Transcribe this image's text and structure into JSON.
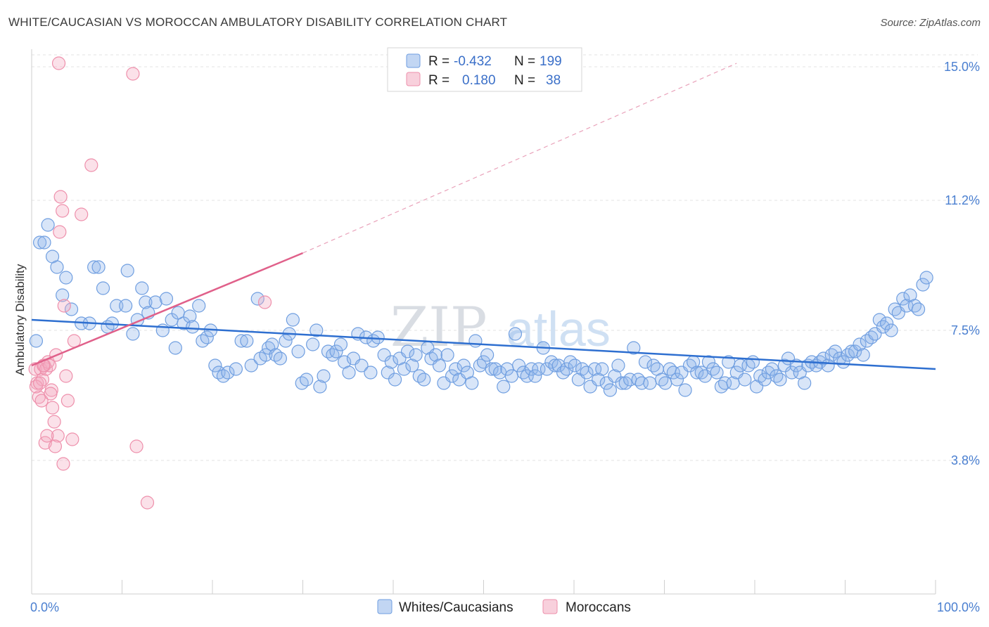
{
  "title": "WHITE/CAUCASIAN VS MOROCCAN AMBULATORY DISABILITY CORRELATION CHART",
  "source": "Source: ZipAtlas.com",
  "watermark": {
    "part1": "ZIP",
    "part2": "atlas"
  },
  "chart_data": {
    "type": "scatter",
    "title": "WHITE/CAUCASIAN VS MOROCCAN AMBULATORY DISABILITY CORRELATION CHART",
    "xlabel": "",
    "ylabel": "Ambulatory Disability",
    "xlim": [
      0,
      100
    ],
    "ylim": [
      0,
      15.5
    ],
    "x_tick_labels": [
      "0.0%",
      "100.0%"
    ],
    "y_ticks": [
      3.8,
      7.5,
      11.2,
      15.0
    ],
    "y_tick_labels": [
      "3.8%",
      "7.5%",
      "11.2%",
      "15.0%"
    ],
    "grid": true,
    "legend": {
      "placement": "top-center",
      "entries": [
        {
          "name": "Whites/Caucasians",
          "r_label": "R =",
          "r_value": "-0.432",
          "n_label": "N =",
          "n_value": "199",
          "color": "#8fb4ea",
          "stroke": "#6f9ee0"
        },
        {
          "name": "Moroccans",
          "r_label": "R =",
          "r_value": "0.180",
          "n_label": "N =",
          "n_value": "38",
          "color": "#f3a9bf",
          "stroke": "#ee8fab"
        }
      ]
    },
    "trend_lines": [
      {
        "series": "Whites/Caucasians",
        "x": [
          0,
          100
        ],
        "y": [
          7.8,
          6.4
        ],
        "color": "#2e6fd0"
      },
      {
        "series": "Moroccans",
        "x": [
          0,
          30
        ],
        "y": [
          6.5,
          9.7
        ],
        "color": "#e0608a"
      },
      {
        "series": "Moroccans (extrapolated)",
        "x": [
          30,
          78
        ],
        "y": [
          9.7,
          15.1
        ],
        "color": "#e9a2ba",
        "dashed": true
      }
    ],
    "series": [
      {
        "name": "Whites/Caucasians",
        "points": [
          [
            0.5,
            7.2
          ],
          [
            0.9,
            10.0
          ],
          [
            1.4,
            10.0
          ],
          [
            1.8,
            10.5
          ],
          [
            2.3,
            9.6
          ],
          [
            2.8,
            9.3
          ],
          [
            3.4,
            8.5
          ],
          [
            3.8,
            9.0
          ],
          [
            4.4,
            8.1
          ],
          [
            5.5,
            7.7
          ],
          [
            6.4,
            7.7
          ],
          [
            6.9,
            9.3
          ],
          [
            7.4,
            9.3
          ],
          [
            7.9,
            8.7
          ],
          [
            8.4,
            7.6
          ],
          [
            8.9,
            7.7
          ],
          [
            9.4,
            8.2
          ],
          [
            10.4,
            8.2
          ],
          [
            10.6,
            9.2
          ],
          [
            11.2,
            7.4
          ],
          [
            11.7,
            7.8
          ],
          [
            12.2,
            8.7
          ],
          [
            12.6,
            8.3
          ],
          [
            12.9,
            8.0
          ],
          [
            13.7,
            8.3
          ],
          [
            14.5,
            7.5
          ],
          [
            14.9,
            8.4
          ],
          [
            15.5,
            7.8
          ],
          [
            15.9,
            7.0
          ],
          [
            16.2,
            8.0
          ],
          [
            16.8,
            7.7
          ],
          [
            17.5,
            7.9
          ],
          [
            17.8,
            7.6
          ],
          [
            18.5,
            8.2
          ],
          [
            18.9,
            7.2
          ],
          [
            19.4,
            7.3
          ],
          [
            19.8,
            7.5
          ],
          [
            20.3,
            6.5
          ],
          [
            20.7,
            6.3
          ],
          [
            21.2,
            6.2
          ],
          [
            21.7,
            6.3
          ],
          [
            22.6,
            6.4
          ],
          [
            23.2,
            7.2
          ],
          [
            23.8,
            7.2
          ],
          [
            24.3,
            6.5
          ],
          [
            25.0,
            8.4
          ],
          [
            25.3,
            6.7
          ],
          [
            25.9,
            6.8
          ],
          [
            26.2,
            7.0
          ],
          [
            26.6,
            7.1
          ],
          [
            27.0,
            6.8
          ],
          [
            27.5,
            6.7
          ],
          [
            28.1,
            7.2
          ],
          [
            28.5,
            7.4
          ],
          [
            28.9,
            7.8
          ],
          [
            29.5,
            6.9
          ],
          [
            29.9,
            6.0
          ],
          [
            30.4,
            6.1
          ],
          [
            31.1,
            7.1
          ],
          [
            31.5,
            7.5
          ],
          [
            31.9,
            5.9
          ],
          [
            32.3,
            6.2
          ],
          [
            32.8,
            6.9
          ],
          [
            33.3,
            6.8
          ],
          [
            33.7,
            6.9
          ],
          [
            34.2,
            7.1
          ],
          [
            34.6,
            6.6
          ],
          [
            35.1,
            6.3
          ],
          [
            35.6,
            6.7
          ],
          [
            36.1,
            7.4
          ],
          [
            36.5,
            6.5
          ],
          [
            37.0,
            7.3
          ],
          [
            37.5,
            6.3
          ],
          [
            37.8,
            7.2
          ],
          [
            38.3,
            7.3
          ],
          [
            39.0,
            6.8
          ],
          [
            39.4,
            6.3
          ],
          [
            39.8,
            6.6
          ],
          [
            40.2,
            6.1
          ],
          [
            40.7,
            6.7
          ],
          [
            41.2,
            6.4
          ],
          [
            41.6,
            6.9
          ],
          [
            42.1,
            6.5
          ],
          [
            42.5,
            6.8
          ],
          [
            42.9,
            6.2
          ],
          [
            43.4,
            6.1
          ],
          [
            43.8,
            7.0
          ],
          [
            44.2,
            6.7
          ],
          [
            44.7,
            6.8
          ],
          [
            45.1,
            6.5
          ],
          [
            45.6,
            6.0
          ],
          [
            46.0,
            6.8
          ],
          [
            46.5,
            6.2
          ],
          [
            46.9,
            6.4
          ],
          [
            47.3,
            6.1
          ],
          [
            47.8,
            6.5
          ],
          [
            48.2,
            6.3
          ],
          [
            48.7,
            6.0
          ],
          [
            49.1,
            7.2
          ],
          [
            49.6,
            6.5
          ],
          [
            50.0,
            6.6
          ],
          [
            50.4,
            6.8
          ],
          [
            50.9,
            6.4
          ],
          [
            51.3,
            6.4
          ],
          [
            51.8,
            6.3
          ],
          [
            52.2,
            5.9
          ],
          [
            52.6,
            6.4
          ],
          [
            53.1,
            6.2
          ],
          [
            53.5,
            7.4
          ],
          [
            53.9,
            6.5
          ],
          [
            54.4,
            6.3
          ],
          [
            54.8,
            6.2
          ],
          [
            55.3,
            6.4
          ],
          [
            55.7,
            6.2
          ],
          [
            56.1,
            6.4
          ],
          [
            56.6,
            7.0
          ],
          [
            57.0,
            6.4
          ],
          [
            57.5,
            6.6
          ],
          [
            57.9,
            6.5
          ],
          [
            58.3,
            6.5
          ],
          [
            58.8,
            6.3
          ],
          [
            59.2,
            6.4
          ],
          [
            59.6,
            6.6
          ],
          [
            60.1,
            6.5
          ],
          [
            60.5,
            6.1
          ],
          [
            60.9,
            6.4
          ],
          [
            61.4,
            6.3
          ],
          [
            61.8,
            5.9
          ],
          [
            62.3,
            6.4
          ],
          [
            62.7,
            6.1
          ],
          [
            63.1,
            6.4
          ],
          [
            63.6,
            6.0
          ],
          [
            64.0,
            5.8
          ],
          [
            64.5,
            6.2
          ],
          [
            64.9,
            6.5
          ],
          [
            65.3,
            6.0
          ],
          [
            65.7,
            6.0
          ],
          [
            66.2,
            6.1
          ],
          [
            66.6,
            7.0
          ],
          [
            67.1,
            6.1
          ],
          [
            67.5,
            6.0
          ],
          [
            67.9,
            6.6
          ],
          [
            68.4,
            6.0
          ],
          [
            68.8,
            6.5
          ],
          [
            69.2,
            6.4
          ],
          [
            69.7,
            6.1
          ],
          [
            70.1,
            6.0
          ],
          [
            70.6,
            6.4
          ],
          [
            71.0,
            6.3
          ],
          [
            71.4,
            6.1
          ],
          [
            71.9,
            6.3
          ],
          [
            72.3,
            5.8
          ],
          [
            72.8,
            6.5
          ],
          [
            73.2,
            6.6
          ],
          [
            73.6,
            6.3
          ],
          [
            74.1,
            6.3
          ],
          [
            74.5,
            6.2
          ],
          [
            74.9,
            6.6
          ],
          [
            75.4,
            6.4
          ],
          [
            75.8,
            6.3
          ],
          [
            76.3,
            5.9
          ],
          [
            76.7,
            6.0
          ],
          [
            77.1,
            6.6
          ],
          [
            77.6,
            6.0
          ],
          [
            78.0,
            6.3
          ],
          [
            78.4,
            6.5
          ],
          [
            78.9,
            6.1
          ],
          [
            79.3,
            6.5
          ],
          [
            79.8,
            6.6
          ],
          [
            80.2,
            5.9
          ],
          [
            80.6,
            6.2
          ],
          [
            81.1,
            6.1
          ],
          [
            81.5,
            6.3
          ],
          [
            81.9,
            6.4
          ],
          [
            82.4,
            6.2
          ],
          [
            82.8,
            6.1
          ],
          [
            83.3,
            6.5
          ],
          [
            83.7,
            6.7
          ],
          [
            84.1,
            6.3
          ],
          [
            84.6,
            6.5
          ],
          [
            85.0,
            6.3
          ],
          [
            85.5,
            6.0
          ],
          [
            85.9,
            6.5
          ],
          [
            86.3,
            6.6
          ],
          [
            86.8,
            6.5
          ],
          [
            87.2,
            6.6
          ],
          [
            87.6,
            6.7
          ],
          [
            88.1,
            6.5
          ],
          [
            88.5,
            6.8
          ],
          [
            88.9,
            6.9
          ],
          [
            89.4,
            6.7
          ],
          [
            89.8,
            6.6
          ],
          [
            90.3,
            6.8
          ],
          [
            90.7,
            6.9
          ],
          [
            91.1,
            6.9
          ],
          [
            91.6,
            7.1
          ],
          [
            92.0,
            6.8
          ],
          [
            92.4,
            7.2
          ],
          [
            92.9,
            7.3
          ],
          [
            93.3,
            7.4
          ],
          [
            93.8,
            7.8
          ],
          [
            94.2,
            7.6
          ],
          [
            94.6,
            7.7
          ],
          [
            95.1,
            7.5
          ],
          [
            95.5,
            8.1
          ],
          [
            95.9,
            8.0
          ],
          [
            96.4,
            8.4
          ],
          [
            96.8,
            8.2
          ],
          [
            97.2,
            8.5
          ],
          [
            97.7,
            8.2
          ],
          [
            98.1,
            8.1
          ],
          [
            98.6,
            8.8
          ],
          [
            99.0,
            9.0
          ]
        ]
      },
      {
        "name": "Moroccans",
        "points": [
          [
            0.4,
            6.4
          ],
          [
            0.6,
            6.0
          ],
          [
            0.8,
            5.6
          ],
          [
            1.0,
            6.4
          ],
          [
            1.2,
            6.1
          ],
          [
            1.4,
            6.5
          ],
          [
            1.6,
            6.4
          ],
          [
            1.8,
            6.6
          ],
          [
            2.0,
            6.5
          ],
          [
            2.2,
            5.8
          ],
          [
            2.3,
            5.3
          ],
          [
            2.5,
            4.9
          ],
          [
            2.7,
            6.8
          ],
          [
            2.9,
            4.5
          ],
          [
            3.1,
            10.3
          ],
          [
            3.2,
            11.3
          ],
          [
            3.4,
            10.9
          ],
          [
            3.6,
            8.2
          ],
          [
            3.8,
            6.2
          ],
          [
            4.0,
            5.5
          ],
          [
            4.5,
            4.4
          ],
          [
            4.7,
            7.2
          ],
          [
            5.5,
            10.8
          ],
          [
            6.6,
            12.2
          ],
          [
            11.2,
            14.8
          ],
          [
            11.6,
            4.2
          ],
          [
            12.8,
            2.6
          ],
          [
            3.0,
            15.1
          ],
          [
            1.1,
            5.5
          ],
          [
            1.5,
            4.3
          ],
          [
            2.6,
            4.2
          ],
          [
            3.5,
            3.7
          ],
          [
            1.7,
            4.5
          ],
          [
            0.5,
            5.9
          ],
          [
            2.1,
            5.7
          ],
          [
            0.9,
            6.0
          ],
          [
            25.8,
            8.3
          ],
          [
            1.3,
            6.5
          ]
        ]
      }
    ]
  }
}
